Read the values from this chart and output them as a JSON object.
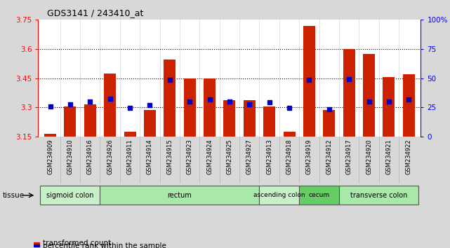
{
  "title": "GDS3141 / 243410_at",
  "samples": [
    "GSM234909",
    "GSM234910",
    "GSM234916",
    "GSM234926",
    "GSM234911",
    "GSM234914",
    "GSM234915",
    "GSM234923",
    "GSM234924",
    "GSM234925",
    "GSM234927",
    "GSM234913",
    "GSM234918",
    "GSM234919",
    "GSM234912",
    "GSM234917",
    "GSM234920",
    "GSM234921",
    "GSM234922"
  ],
  "red_bar_values": [
    3.165,
    3.305,
    3.315,
    3.475,
    3.175,
    3.285,
    3.545,
    3.45,
    3.45,
    3.335,
    3.335,
    3.305,
    3.175,
    3.72,
    3.285,
    3.6,
    3.575,
    3.455,
    3.47
  ],
  "blue_dot_values": [
    3.305,
    3.315,
    3.33,
    3.345,
    3.295,
    3.31,
    3.44,
    3.33,
    3.34,
    3.33,
    3.315,
    3.325,
    3.295,
    3.44,
    3.29,
    3.445,
    3.33,
    3.33,
    3.34
  ],
  "bar_bottom": 3.15,
  "ylim_left": [
    3.15,
    3.75
  ],
  "ylim_right": [
    0,
    100
  ],
  "yticks_left": [
    3.15,
    3.3,
    3.45,
    3.6,
    3.75
  ],
  "yticks_right": [
    0,
    25,
    50,
    75,
    100
  ],
  "ytick_labels_left": [
    "3.15",
    "3.3",
    "3.45",
    "3.6",
    "3.75"
  ],
  "ytick_labels_right": [
    "0",
    "25",
    "50",
    "75",
    "100%"
  ],
  "hlines": [
    3.3,
    3.45,
    3.6
  ],
  "tissue_groups": [
    {
      "label": "sigmoid colon",
      "start": 0,
      "end": 3,
      "color": "#c8f0c8"
    },
    {
      "label": "rectum",
      "start": 3,
      "end": 11,
      "color": "#a8e8a8"
    },
    {
      "label": "ascending colon",
      "start": 11,
      "end": 13,
      "color": "#c8f0c8"
    },
    {
      "label": "cecum",
      "start": 13,
      "end": 15,
      "color": "#66cc66"
    },
    {
      "label": "transverse colon",
      "start": 15,
      "end": 19,
      "color": "#a8e8a8"
    }
  ],
  "bar_color": "#cc2200",
  "dot_color": "#0000cc",
  "bar_width": 0.6,
  "bg_color": "#d8d8d8",
  "plot_bg": "#ffffff"
}
